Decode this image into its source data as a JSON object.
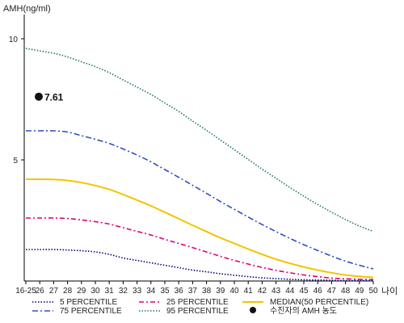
{
  "chart_data": {
    "type": "line",
    "ylabel": "AMH(ng/ml)",
    "xlabel": "나이",
    "ylim": [
      0,
      11
    ],
    "yticks": [
      5,
      10
    ],
    "categories": [
      "16-25",
      "26",
      "27",
      "28",
      "29",
      "30",
      "31",
      "32",
      "33",
      "34",
      "35",
      "36",
      "37",
      "38",
      "39",
      "40",
      "41",
      "42",
      "43",
      "44",
      "45",
      "46",
      "47",
      "48",
      "49",
      "50"
    ],
    "grid": false,
    "legend_position": "bottom",
    "series": [
      {
        "name": "5 PERCENTILE",
        "color": "#000080",
        "dash": "1.5,2",
        "values": [
          1.3,
          1.3,
          1.3,
          1.28,
          1.25,
          1.2,
          1.1,
          0.95,
          0.85,
          0.75,
          0.65,
          0.55,
          0.45,
          0.38,
          0.3,
          0.24,
          0.18,
          0.13,
          0.1,
          0.07,
          0.05,
          0.04,
          0.03,
          0.02,
          0.02,
          0.02
        ]
      },
      {
        "name": "25 PERCENTILE",
        "color": "#e0007a",
        "dash": "6,3,2,3",
        "values": [
          2.6,
          2.6,
          2.6,
          2.58,
          2.52,
          2.45,
          2.35,
          2.2,
          2.05,
          1.9,
          1.72,
          1.55,
          1.38,
          1.2,
          1.02,
          0.85,
          0.7,
          0.56,
          0.44,
          0.34,
          0.25,
          0.18,
          0.12,
          0.09,
          0.07,
          0.06
        ]
      },
      {
        "name": "MEDIAN(50 PERCENTILE)",
        "color": "#f2c500",
        "dash": "",
        "values": [
          4.2,
          4.2,
          4.19,
          4.15,
          4.06,
          3.94,
          3.78,
          3.57,
          3.34,
          3.1,
          2.84,
          2.57,
          2.3,
          2.04,
          1.78,
          1.55,
          1.32,
          1.1,
          0.9,
          0.73,
          0.58,
          0.45,
          0.34,
          0.25,
          0.19,
          0.15
        ]
      },
      {
        "name": "75 PERCENTILE",
        "color": "#2e4ec6",
        "dash": "7,3,2,3",
        "values": [
          6.2,
          6.2,
          6.2,
          6.15,
          6.0,
          5.85,
          5.68,
          5.45,
          5.2,
          4.92,
          4.6,
          4.28,
          3.95,
          3.62,
          3.28,
          2.96,
          2.64,
          2.33,
          2.04,
          1.76,
          1.5,
          1.26,
          1.03,
          0.82,
          0.65,
          0.5
        ]
      },
      {
        "name": "95 PERCENTILE",
        "color": "#1e7a4a",
        "dash": "1.5,2",
        "values": [
          9.6,
          9.5,
          9.4,
          9.25,
          9.05,
          8.85,
          8.6,
          8.3,
          8.0,
          7.7,
          7.35,
          7.0,
          6.6,
          6.22,
          5.82,
          5.42,
          5.02,
          4.62,
          4.24,
          3.86,
          3.5,
          3.16,
          2.84,
          2.54,
          2.27,
          2.05
        ]
      }
    ],
    "patient_point": {
      "name": "수진자의 AMH 농도",
      "x": "16-25",
      "value": 7.61,
      "label": "7.61",
      "color": "#111111"
    }
  }
}
